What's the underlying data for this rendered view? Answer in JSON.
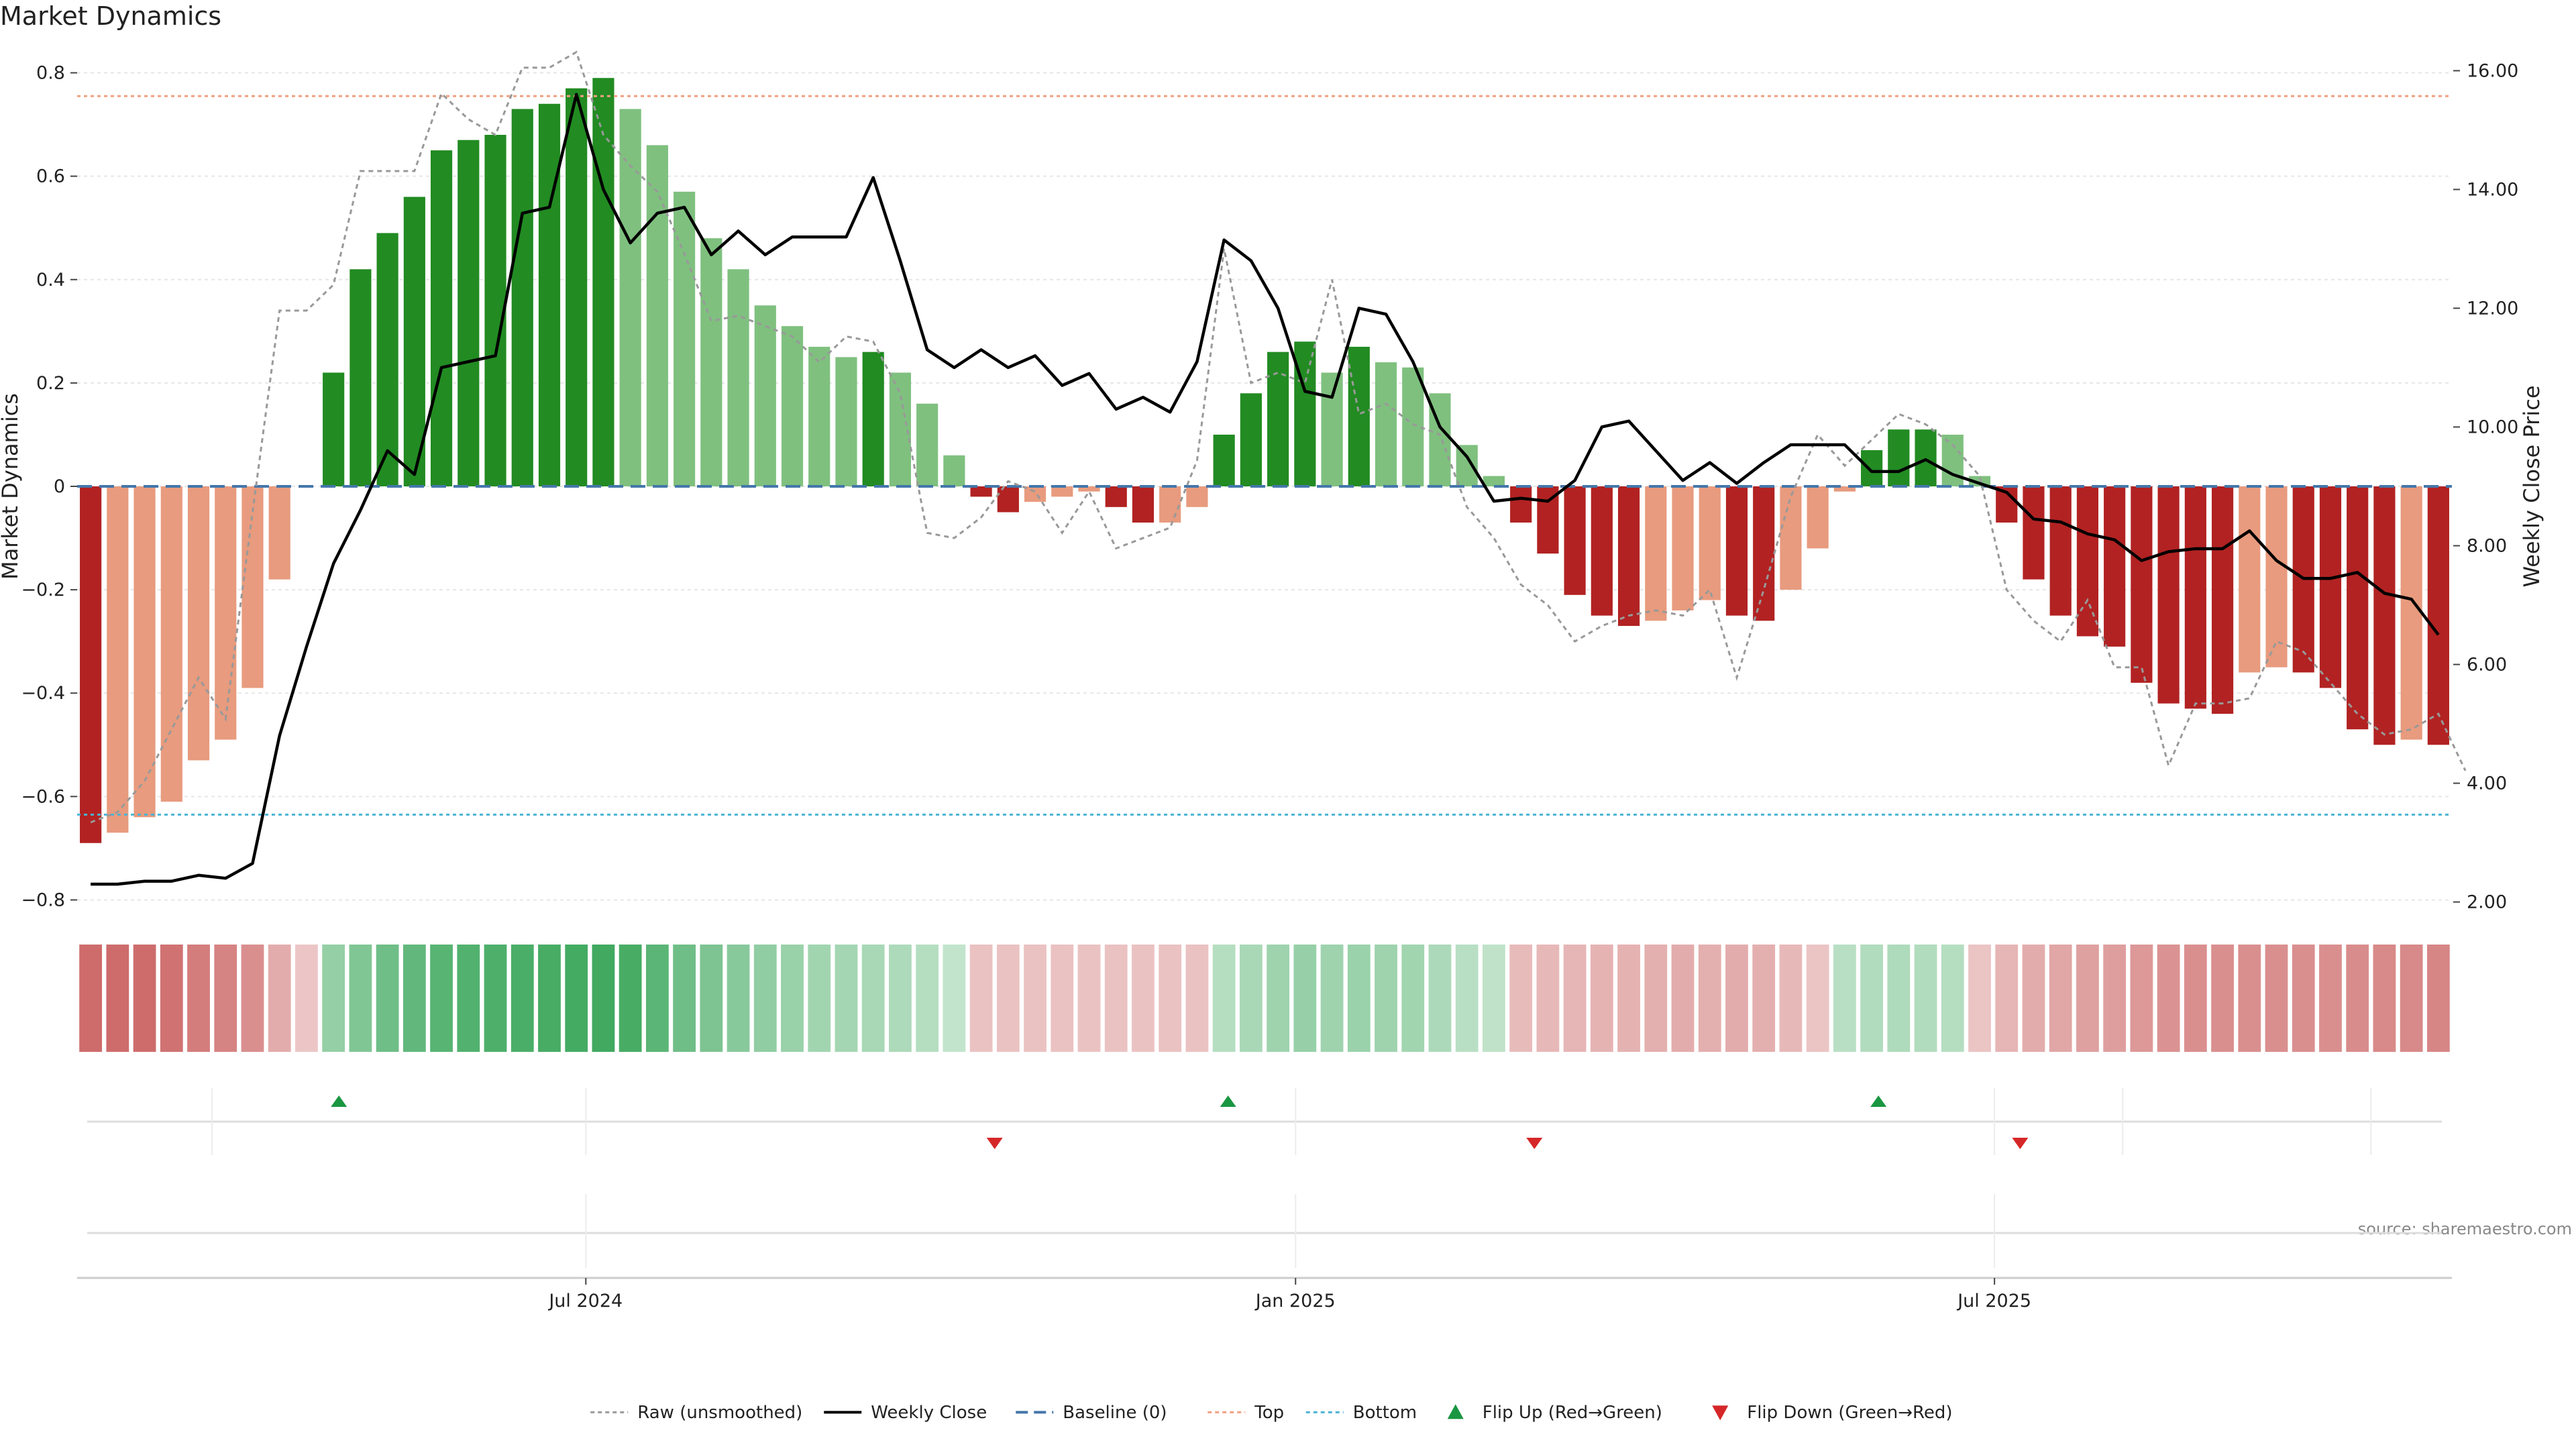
{
  "chart_data": {
    "type": "bar",
    "title": "Market Dynamics",
    "ylabel": "Market Dynamics",
    "y2label": "Weekly Close Price",
    "ylim": [
      -0.85,
      0.85
    ],
    "y2lim": [
      1.6,
      16.4
    ],
    "yticks": [
      -0.8,
      -0.6,
      -0.4,
      -0.2,
      0,
      0.2,
      0.4,
      0.6,
      0.8
    ],
    "ytick_labels": [
      "−0.8",
      "−0.6",
      "−0.4",
      "−0.2",
      "0",
      "0.2",
      "0.4",
      "0.6",
      "0.8"
    ],
    "y2ticks": [
      2,
      4,
      6,
      8,
      10,
      12,
      14,
      16
    ],
    "y2tick_labels": [
      "2.00",
      "4.00",
      "6.00",
      "8.00",
      "10.00",
      "12.00",
      "14.00",
      "16.00"
    ],
    "xticks": [
      {
        "index": 18.35,
        "label": "Jul 2024"
      },
      {
        "index": 44.65,
        "label": "Jan 2025"
      },
      {
        "index": 70.55,
        "label": "Jul 2025"
      }
    ],
    "top_threshold": 0.755,
    "bottom_threshold": -0.635,
    "baseline": 0,
    "values": [
      -0.69,
      -0.67,
      -0.64,
      -0.61,
      -0.53,
      -0.49,
      -0.39,
      -0.18,
      0,
      0.22,
      0.42,
      0.49,
      0.56,
      0.65,
      0.67,
      0.68,
      0.73,
      0.74,
      0.77,
      0.79,
      0.73,
      0.66,
      0.57,
      0.48,
      0.42,
      0.35,
      0.31,
      0.27,
      0.25,
      0.26,
      0.22,
      0.16,
      0.06,
      -0.02,
      -0.05,
      -0.03,
      -0.02,
      -0.01,
      -0.04,
      -0.07,
      -0.07,
      -0.04,
      0.1,
      0.18,
      0.26,
      0.28,
      0.22,
      0.27,
      0.24,
      0.23,
      0.18,
      0.08,
      0.02,
      -0.07,
      -0.13,
      -0.21,
      -0.25,
      -0.27,
      -0.26,
      -0.24,
      -0.22,
      -0.25,
      -0.26,
      -0.2,
      -0.12,
      -0.01,
      0.07,
      0.11,
      0.11,
      0.1,
      0.02,
      -0.07,
      -0.18,
      -0.25,
      -0.29,
      -0.31,
      -0.38,
      -0.42,
      -0.43,
      -0.44,
      -0.36,
      -0.35,
      -0.36,
      -0.39,
      -0.47,
      -0.5,
      -0.49,
      -0.5
    ],
    "bar_colors": [
      "#b22222",
      "#e89b7e",
      "#e89b7e",
      "#e89b7e",
      "#e89b7e",
      "#e89b7e",
      "#e89b7e",
      "#e89b7e",
      "#ffffff",
      "#228b22",
      "#228b22",
      "#228b22",
      "#228b22",
      "#228b22",
      "#228b22",
      "#228b22",
      "#228b22",
      "#228b22",
      "#228b22",
      "#228b22",
      "#7fc07f",
      "#7fc07f",
      "#7fc07f",
      "#7fc07f",
      "#7fc07f",
      "#7fc07f",
      "#7fc07f",
      "#7fc07f",
      "#7fc07f",
      "#228b22",
      "#7fc07f",
      "#7fc07f",
      "#7fc07f",
      "#b22222",
      "#b22222",
      "#e89b7e",
      "#e89b7e",
      "#e89b7e",
      "#b22222",
      "#b22222",
      "#e89b7e",
      "#e89b7e",
      "#228b22",
      "#228b22",
      "#228b22",
      "#228b22",
      "#7fc07f",
      "#228b22",
      "#7fc07f",
      "#7fc07f",
      "#7fc07f",
      "#7fc07f",
      "#7fc07f",
      "#b22222",
      "#b22222",
      "#b22222",
      "#b22222",
      "#b22222",
      "#e89b7e",
      "#e89b7e",
      "#e89b7e",
      "#b22222",
      "#b22222",
      "#e89b7e",
      "#e89b7e",
      "#e89b7e",
      "#228b22",
      "#228b22",
      "#228b22",
      "#7fc07f",
      "#7fc07f",
      "#b22222",
      "#b22222",
      "#b22222",
      "#b22222",
      "#b22222",
      "#b22222",
      "#b22222",
      "#b22222",
      "#b22222",
      "#e89b7e",
      "#e89b7e",
      "#b22222",
      "#b22222",
      "#b22222",
      "#b22222",
      "#e89b7e",
      "#b22222"
    ],
    "raw": [
      -0.65,
      -0.63,
      -0.57,
      -0.47,
      -0.37,
      -0.45,
      -0.05,
      0.34,
      0.34,
      0.39,
      0.61,
      0.61,
      0.61,
      0.76,
      0.71,
      0.68,
      0.81,
      0.81,
      0.84,
      0.68,
      0.62,
      0.57,
      0.45,
      0.32,
      0.33,
      0.31,
      0.29,
      0.24,
      0.29,
      0.28,
      0.18,
      -0.09,
      -0.1,
      -0.06,
      0.01,
      -0.01,
      -0.09,
      -0.01,
      -0.12,
      -0.1,
      -0.08,
      0.05,
      0.46,
      0.2,
      0.22,
      0.2,
      0.4,
      0.14,
      0.16,
      0.12,
      0.1,
      -0.04,
      -0.1,
      -0.19,
      -0.23,
      -0.3,
      -0.27,
      -0.25,
      -0.24,
      -0.25,
      -0.2,
      -0.37,
      -0.2,
      -0.02,
      0.1,
      0.04,
      0.09,
      0.14,
      0.12,
      0.08,
      0.02,
      -0.2,
      -0.26,
      -0.3,
      -0.22,
      -0.35,
      -0.35,
      -0.54,
      -0.42,
      -0.42,
      -0.41,
      -0.3,
      -0.32,
      -0.38,
      -0.44,
      -0.48,
      -0.47,
      -0.44,
      -0.55
    ],
    "series": [
      {
        "name": "Weekly Close",
        "values": [
          2.3,
          2.3,
          2.35,
          2.35,
          2.45,
          2.4,
          2.65,
          4.8,
          6.3,
          7.7,
          8.6,
          9.6,
          9.2,
          11.0,
          11.1,
          11.2,
          13.6,
          13.7,
          15.6,
          14.0,
          13.1,
          13.6,
          13.7,
          12.9,
          13.3,
          12.9,
          13.2,
          13.2,
          13.2,
          14.2,
          12.8,
          11.3,
          11.0,
          11.3,
          11.0,
          11.2,
          10.7,
          10.9,
          10.3,
          10.5,
          10.25,
          11.1,
          13.15,
          12.8,
          12.0,
          10.6,
          10.5,
          12.0,
          11.9,
          11.1,
          10.0,
          9.5,
          8.75,
          8.8,
          8.75,
          9.1,
          10.0,
          10.1,
          9.6,
          9.1,
          9.4,
          9.05,
          9.4,
          9.7,
          9.7,
          9.7,
          9.25,
          9.25,
          9.45,
          9.2,
          9.05,
          8.9,
          8.45,
          8.4,
          8.2,
          8.1,
          7.75,
          7.9,
          7.95,
          7.95,
          8.25,
          7.75,
          7.45,
          7.45,
          7.55,
          7.2,
          7.1,
          6.5
        ]
      },
      {
        "name": "Raw (unsmoothed)"
      },
      {
        "name": "Baseline (0)"
      },
      {
        "name": "Top"
      },
      {
        "name": "Bottom"
      }
    ],
    "heat_strip": [
      -0.74,
      -0.74,
      -0.74,
      -0.7,
      -0.62,
      -0.58,
      -0.5,
      -0.3,
      -0.12,
      0.38,
      0.5,
      0.6,
      0.68,
      0.74,
      0.78,
      0.8,
      0.82,
      0.84,
      0.86,
      0.88,
      0.84,
      0.72,
      0.6,
      0.52,
      0.45,
      0.4,
      0.35,
      0.3,
      0.28,
      0.26,
      0.23,
      0.18,
      0.1,
      -0.15,
      -0.15,
      -0.15,
      -0.15,
      -0.15,
      -0.15,
      -0.15,
      -0.15,
      -0.15,
      0.18,
      0.25,
      0.32,
      0.36,
      0.32,
      0.34,
      0.32,
      0.3,
      0.24,
      0.16,
      0.12,
      -0.2,
      -0.22,
      -0.24,
      -0.25,
      -0.26,
      -0.28,
      -0.3,
      -0.28,
      -0.3,
      -0.28,
      -0.22,
      -0.14,
      0.16,
      0.2,
      0.22,
      0.2,
      0.18,
      -0.14,
      -0.24,
      -0.3,
      -0.34,
      -0.38,
      -0.4,
      -0.44,
      -0.48,
      -0.5,
      -0.5,
      -0.5,
      -0.5,
      -0.5,
      -0.5,
      -0.52,
      -0.54,
      -0.54,
      -0.56
    ],
    "flips": [
      {
        "index": 9.2,
        "direction": "up"
      },
      {
        "index": 33.5,
        "direction": "down"
      },
      {
        "index": 42.15,
        "direction": "up"
      },
      {
        "index": 53.5,
        "direction": "down"
      },
      {
        "index": 66.25,
        "direction": "up"
      },
      {
        "index": 71.5,
        "direction": "down"
      }
    ],
    "legend": {
      "position": "bottom-center",
      "items": [
        {
          "label": "Raw (unsmoothed)",
          "marker": "dotted-line",
          "color": "#999999"
        },
        {
          "label": "Weekly Close",
          "marker": "line",
          "color": "#000000"
        },
        {
          "label": "Baseline (0)",
          "marker": "dashed-line",
          "color": "#4477aa"
        },
        {
          "label": "Top",
          "marker": "dotted-line",
          "color": "#f0a080"
        },
        {
          "label": "Bottom",
          "marker": "dotted-line",
          "color": "#4ab3d4"
        },
        {
          "label": "Flip Up (Red→Green)",
          "marker": "triangle-up",
          "color": "#1a9641"
        },
        {
          "label": "Flip Down (Green→Red)",
          "marker": "triangle-down",
          "color": "#d62728"
        }
      ]
    },
    "colors": {
      "strong_red": "#b22222",
      "light_red": "#e89b7e",
      "strong_green": "#228b22",
      "light_green": "#7fc07f",
      "close_line": "#000000",
      "raw_line": "#999999",
      "baseline": "#4477aa",
      "top": "#f0a080",
      "bottom": "#4ab3d4",
      "flip_up": "#1a9641",
      "flip_down": "#d62728"
    },
    "grid": true,
    "source": "source: sharemaestro.com"
  }
}
